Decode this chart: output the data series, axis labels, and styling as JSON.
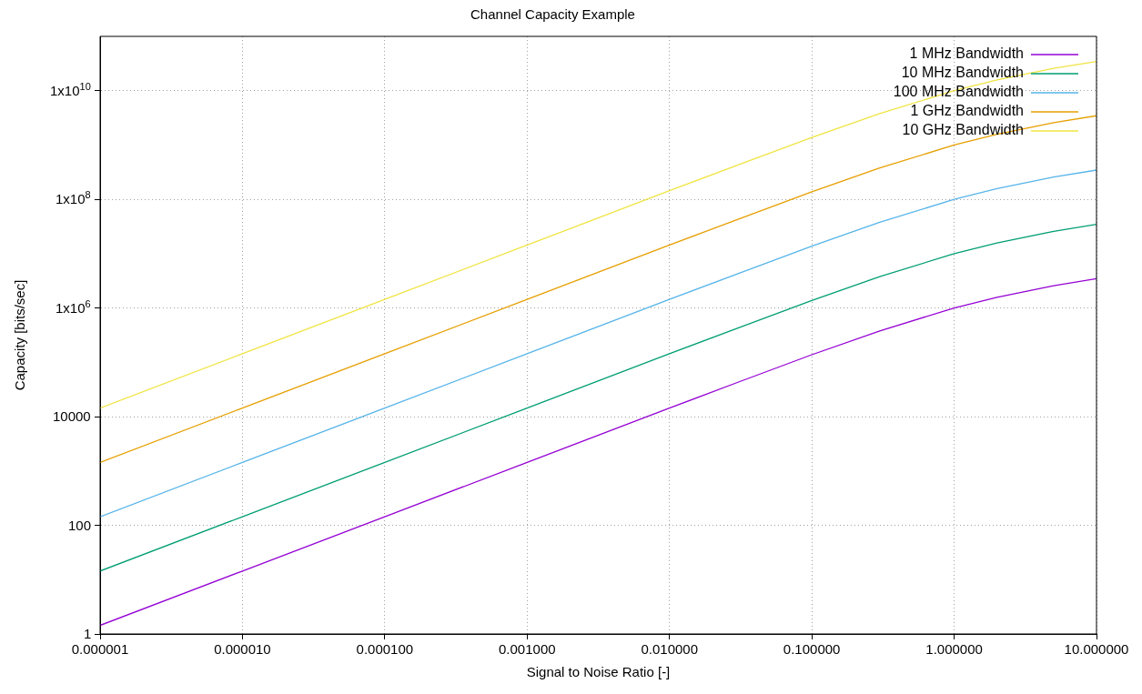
{
  "chart_data": {
    "type": "line",
    "title": "Channel Capacity Example",
    "xlabel": "Signal to Noise Ratio [-]",
    "ylabel": "Capacity [bits/sec]",
    "x": [
      1e-06,
      1e-05,
      0.0001,
      0.001,
      0.01,
      0.03,
      0.1,
      0.3,
      1,
      2,
      5,
      10
    ],
    "series": [
      {
        "name": "1 MHz Bandwidth",
        "color": "#9400d3",
        "values": [
          1.44,
          14.4,
          144,
          1440.0,
          14400.0,
          42600.0,
          138000.0,
          379000.0,
          1000000.0,
          1580000.0,
          2580000.0,
          3460000.0
        ]
      },
      {
        "name": "10 MHz Bandwidth",
        "color": "#009e73",
        "values": [
          14.4,
          144,
          1440.0,
          14400.0,
          144000.0,
          426000.0,
          1380000.0,
          3790000.0,
          10000000.0,
          15800000.0,
          25800000.0,
          34600000.0
        ]
      },
      {
        "name": "100 MHz Bandwidth",
        "color": "#56b4e9",
        "values": [
          144,
          1440.0,
          14400.0,
          144000.0,
          1440000.0,
          4260000.0,
          13800000.0,
          37900000.0,
          100000000.0,
          158000000.0,
          258000000.0,
          346000000.0
        ]
      },
      {
        "name": "1 GHz Bandwidth",
        "color": "#e69f00",
        "values": [
          1440.0,
          14400.0,
          144000.0,
          1440000.0,
          14400000.0,
          42600000.0,
          138000000.0,
          379000000.0,
          1000000000.0,
          1580000000.0,
          2580000000.0,
          3460000000.0
        ]
      },
      {
        "name": "10 GHz Bandwidth",
        "color": "#f0e442",
        "values": [
          14400.0,
          144000.0,
          1440000.0,
          14400000.0,
          144000000.0,
          426000000.0,
          1380000000.0,
          3790000000.0,
          10000000000.0,
          15800000000.0,
          25800000000.0,
          34600000000.0
        ]
      }
    ],
    "log": "xy",
    "xlim": [
      1e-06,
      10
    ],
    "xticks": [
      {
        "value": 1e-06,
        "label": "0.000001"
      },
      {
        "value": 1e-05,
        "label": "0.000010"
      },
      {
        "value": 0.0001,
        "label": "0.000100"
      },
      {
        "value": 0.001,
        "label": "0.001000"
      },
      {
        "value": 0.01,
        "label": "0.010000"
      },
      {
        "value": 0.1,
        "label": "0.100000"
      },
      {
        "value": 1,
        "label": "1.000000"
      },
      {
        "value": 10,
        "label": "10.000000"
      }
    ],
    "ylim": [
      1,
      100000000000.0
    ],
    "yticks": [
      1,
      100,
      10000,
      {
        "value": 1000000.0,
        "label": "1x10$^{6}$"
      },
      {
        "value": 100000000.0,
        "label": "1x10$^{8}$"
      },
      {
        "value": 10000000000.0,
        "label": "1x10$^{10}$"
      }
    ],
    "grid": true,
    "legend": "top right",
    "marker": "none",
    "line_style": "solid"
  }
}
